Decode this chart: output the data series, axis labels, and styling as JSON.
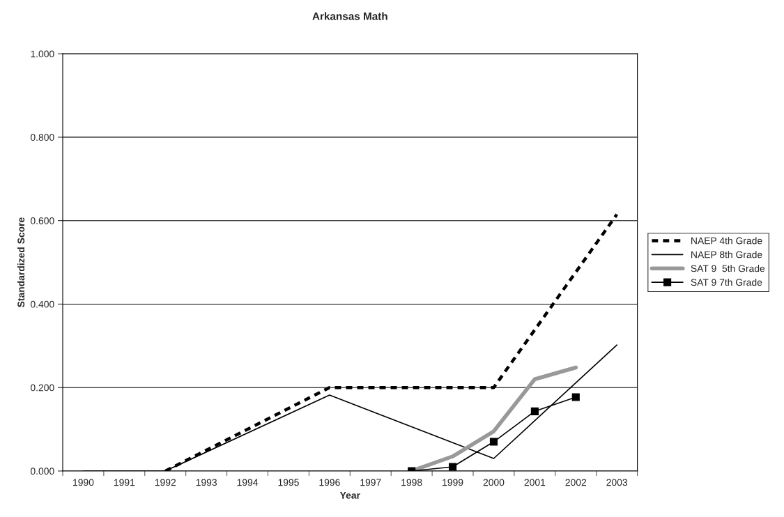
{
  "chart_data": {
    "type": "line",
    "title": "Arkansas Math",
    "xlabel": "Year",
    "ylabel": "Standardized Score",
    "categories": [
      "1990",
      "1991",
      "1992",
      "1993",
      "1994",
      "1995",
      "1996",
      "1997",
      "1998",
      "1999",
      "2000",
      "2001",
      "2002",
      "2003"
    ],
    "series": [
      {
        "name": "NAEP 4th Grade",
        "color": "#000000",
        "line_style": "dashed",
        "marker": "none",
        "values": [
          null,
          null,
          0.0,
          null,
          null,
          null,
          0.2,
          null,
          null,
          null,
          0.2,
          null,
          null,
          0.615
        ]
      },
      {
        "name": "NAEP 8th Grade",
        "color": "#000000",
        "line_style": "solid",
        "marker": "none",
        "values": [
          0.0,
          null,
          0.0,
          null,
          null,
          null,
          0.182,
          null,
          null,
          null,
          0.03,
          null,
          null,
          0.302
        ]
      },
      {
        "name": "SAT 9  5th Grade",
        "color": "#999999",
        "line_style": "solid",
        "marker": "none",
        "values": [
          null,
          null,
          null,
          null,
          null,
          null,
          null,
          null,
          0.0,
          0.035,
          0.095,
          0.22,
          0.248,
          null
        ]
      },
      {
        "name": "SAT 9 7th Grade",
        "color": "#000000",
        "line_style": "solid",
        "marker": "square",
        "values": [
          null,
          null,
          null,
          null,
          null,
          null,
          null,
          null,
          0.0,
          0.01,
          0.07,
          0.143,
          0.177,
          null
        ]
      }
    ],
    "ylim": [
      0,
      1
    ],
    "yticks": [
      {
        "value": 0,
        "label": "0.000"
      },
      {
        "value": 0.2,
        "label": "0.200"
      },
      {
        "value": 0.4,
        "label": "0.400"
      },
      {
        "value": 0.6,
        "label": "0.600"
      },
      {
        "value": 0.8,
        "label": "0.800"
      },
      {
        "value": 1,
        "label": "1.000"
      }
    ],
    "grid": "y",
    "legend": "right"
  }
}
